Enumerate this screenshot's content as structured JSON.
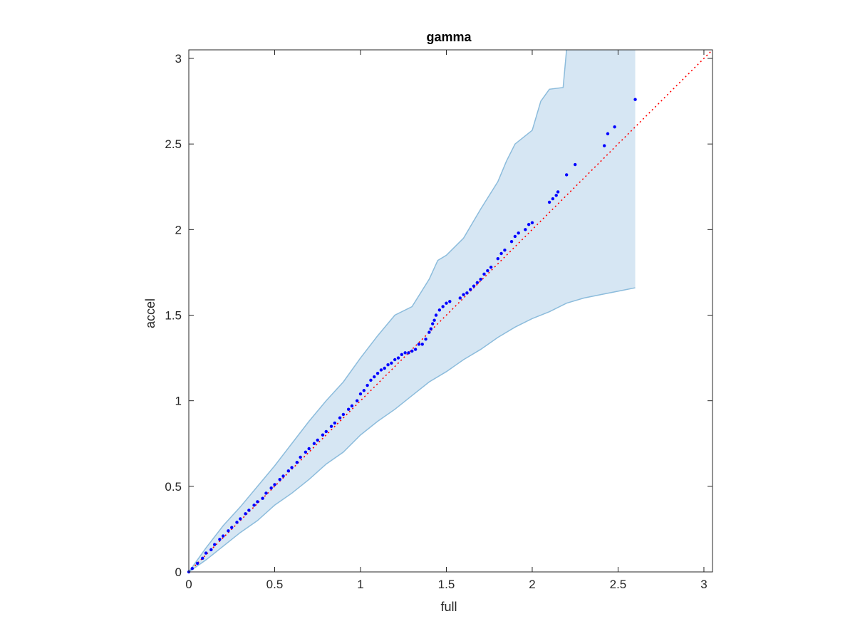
{
  "chart_data": {
    "type": "scatter",
    "title": "gamma",
    "xlabel": "full",
    "ylabel": "accel",
    "xlim": [
      0,
      3.05
    ],
    "ylim": [
      0,
      3.05
    ],
    "xticks": [
      0,
      0.5,
      1,
      1.5,
      2,
      2.5,
      3
    ],
    "yticks": [
      0,
      0.5,
      1,
      1.5,
      2,
      2.5,
      3
    ],
    "xtick_labels": [
      "0",
      "0.5",
      "1",
      "1.5",
      "2",
      "2.5",
      "3"
    ],
    "ytick_labels": [
      "0",
      "0.5",
      "1",
      "1.5",
      "2",
      "2.5",
      "3"
    ],
    "grid": false,
    "colors": {
      "points": "#0000ff",
      "reference": "#ff0000",
      "band_fill": "#d6e6f3",
      "band_edge": "#8cbcdc"
    },
    "reference_line": {
      "style": "dotted",
      "from": [
        0,
        0
      ],
      "to": [
        3.05,
        3.05
      ]
    },
    "band_upper": {
      "x": [
        0,
        0.1,
        0.2,
        0.3,
        0.4,
        0.5,
        0.6,
        0.7,
        0.8,
        0.9,
        1.0,
        1.1,
        1.2,
        1.3,
        1.4,
        1.45,
        1.5,
        1.6,
        1.7,
        1.8,
        1.85,
        1.9,
        2.0,
        2.05,
        2.1,
        2.18,
        2.2
      ],
      "y": [
        0,
        0.14,
        0.27,
        0.38,
        0.5,
        0.62,
        0.75,
        0.88,
        1.0,
        1.11,
        1.25,
        1.38,
        1.5,
        1.55,
        1.71,
        1.82,
        1.85,
        1.95,
        2.12,
        2.28,
        2.4,
        2.5,
        2.58,
        2.75,
        2.82,
        2.83,
        3.05
      ]
    },
    "band_lower": {
      "x": [
        0,
        0.1,
        0.2,
        0.3,
        0.4,
        0.5,
        0.6,
        0.7,
        0.8,
        0.9,
        1.0,
        1.1,
        1.2,
        1.3,
        1.4,
        1.5,
        1.6,
        1.7,
        1.8,
        1.9,
        2.0,
        2.1,
        2.2,
        2.3,
        2.4,
        2.5,
        2.6
      ],
      "y": [
        0,
        0.07,
        0.15,
        0.23,
        0.3,
        0.39,
        0.46,
        0.54,
        0.63,
        0.7,
        0.8,
        0.88,
        0.95,
        1.03,
        1.11,
        1.17,
        1.24,
        1.3,
        1.37,
        1.43,
        1.48,
        1.52,
        1.57,
        1.6,
        1.62,
        1.64,
        1.66
      ]
    },
    "band_right_edge": {
      "x": 2.6,
      "y_from": 1.66,
      "y_to": 3.05
    },
    "series": [
      {
        "marker": "dot",
        "x": [
          0,
          0.02,
          0.05,
          0.08,
          0.1,
          0.13,
          0.15,
          0.18,
          0.2,
          0.23,
          0.25,
          0.28,
          0.3,
          0.33,
          0.35,
          0.38,
          0.4,
          0.43,
          0.45,
          0.48,
          0.5,
          0.53,
          0.55,
          0.58,
          0.6,
          0.63,
          0.65,
          0.68,
          0.7,
          0.73,
          0.75,
          0.78,
          0.8,
          0.83,
          0.85,
          0.88,
          0.9,
          0.93,
          0.95,
          0.98,
          1.0,
          1.02,
          1.04,
          1.06,
          1.08,
          1.1,
          1.12,
          1.14,
          1.16,
          1.18,
          1.2,
          1.22,
          1.24,
          1.26,
          1.28,
          1.3,
          1.32,
          1.34,
          1.36,
          1.38,
          1.4,
          1.41,
          1.42,
          1.43,
          1.44,
          1.46,
          1.48,
          1.5,
          1.52,
          1.58,
          1.6,
          1.62,
          1.64,
          1.66,
          1.68,
          1.7,
          1.72,
          1.74,
          1.76,
          1.8,
          1.82,
          1.84,
          1.88,
          1.9,
          1.92,
          1.96,
          1.98,
          2.0,
          2.1,
          2.12,
          2.14,
          2.15,
          2.2,
          2.25,
          2.42,
          2.44,
          2.48,
          2.6
        ],
        "y": [
          0,
          0.02,
          0.05,
          0.08,
          0.11,
          0.13,
          0.16,
          0.19,
          0.21,
          0.24,
          0.26,
          0.29,
          0.31,
          0.34,
          0.36,
          0.39,
          0.41,
          0.43,
          0.46,
          0.49,
          0.51,
          0.54,
          0.56,
          0.59,
          0.61,
          0.64,
          0.67,
          0.7,
          0.72,
          0.75,
          0.77,
          0.8,
          0.82,
          0.85,
          0.87,
          0.9,
          0.92,
          0.95,
          0.97,
          1.0,
          1.04,
          1.06,
          1.09,
          1.12,
          1.14,
          1.16,
          1.18,
          1.19,
          1.21,
          1.22,
          1.24,
          1.25,
          1.27,
          1.28,
          1.28,
          1.29,
          1.3,
          1.33,
          1.33,
          1.36,
          1.4,
          1.42,
          1.45,
          1.47,
          1.5,
          1.53,
          1.55,
          1.57,
          1.58,
          1.6,
          1.62,
          1.63,
          1.65,
          1.67,
          1.69,
          1.71,
          1.74,
          1.76,
          1.78,
          1.83,
          1.86,
          1.88,
          1.93,
          1.96,
          1.98,
          2.0,
          2.03,
          2.04,
          2.16,
          2.18,
          2.2,
          2.22,
          2.32,
          2.38,
          2.49,
          2.56,
          2.6,
          2.76
        ]
      }
    ]
  }
}
